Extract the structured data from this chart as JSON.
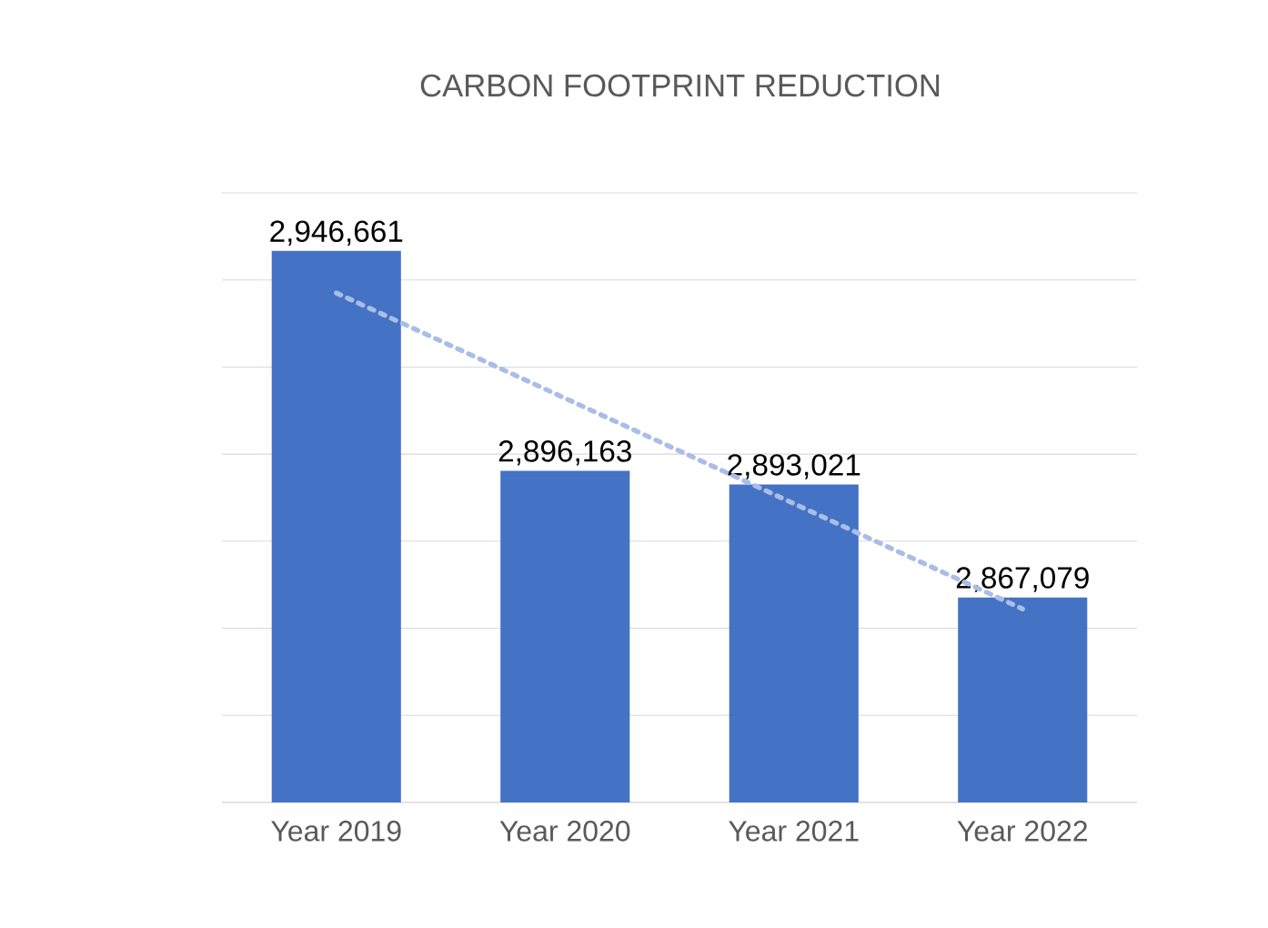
{
  "chart_data": {
    "type": "bar",
    "title": "CARBON FOOTPRINT REDUCTION",
    "categories": [
      "Year 2019",
      "Year 2020",
      "Year 2021",
      "Year 2022"
    ],
    "series": [
      {
        "color": "#4472c4",
        "values": [
          2946661,
          2896163,
          2893021,
          2867079
        ],
        "value_labels": [
          "2,946,661",
          "2,896,163",
          "2,893,021",
          "2,867,079"
        ]
      },
      {
        "type": "line",
        "color": "#a9bde6",
        "line_style": "dotted",
        "marker": "none",
        "values": [
          2937014,
          2912825,
          2888637,
          2864448
        ]
      }
    ],
    "ylim": [
      2820000,
      2960000
    ],
    "tick_labels": "x",
    "grid": "y",
    "legend": false
  }
}
